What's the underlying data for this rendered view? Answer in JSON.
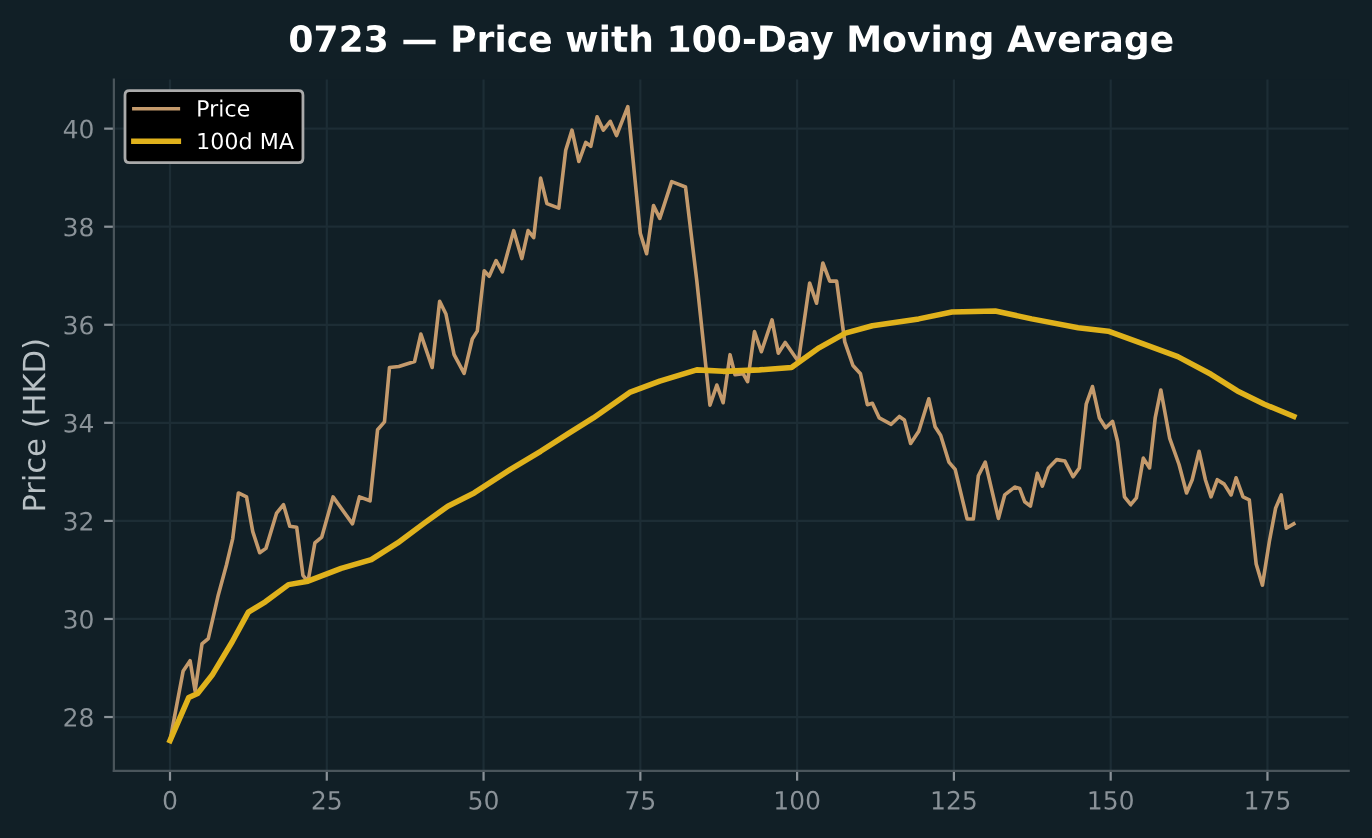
{
  "chart_data": {
    "type": "line",
    "title": "0723 — Price with 100-Day Moving Average",
    "ylabel": "Price (HKD)",
    "xlim": [
      -8.95,
      187.95
    ],
    "xticks": [
      0,
      25,
      50,
      75,
      100,
      125,
      150,
      175
    ],
    "ylim": [
      26.9,
      41.0
    ],
    "yticks": [
      28,
      30,
      32,
      34,
      36,
      38,
      40
    ],
    "grid": true,
    "legend": "top left",
    "series": [
      {
        "name": "Price",
        "color": "#c49a6c",
        "x": [
          0,
          2.1,
          3.2,
          4,
          5.1,
          6.1,
          7.7,
          9,
          10,
          10.9,
          12.2,
          13.2,
          14.3,
          15.3,
          17,
          18.1,
          19.1,
          20.2,
          21.2,
          22,
          23.1,
          24.2,
          26,
          29.1,
          30.2,
          31.9,
          33.1,
          34.2,
          35,
          36.5,
          39,
          40,
          41.8,
          43,
          44,
          45.3,
          46.9,
          48.2,
          49,
          50.1,
          50.9,
          52,
          53,
          54.8,
          56.1,
          57.1,
          58,
          59.1,
          60.1,
          62,
          63.1,
          64.1,
          65.2,
          66.3,
          67.1,
          68.1,
          69.1,
          70.2,
          71.2,
          73,
          75,
          76,
          77.1,
          78.1,
          80,
          82.2,
          84,
          86.1,
          87.2,
          88.2,
          89.3,
          90.1,
          91.4,
          92.1,
          93.2,
          94.3,
          96,
          97,
          98.1,
          100.2,
          102,
          103.1,
          104.1,
          105.2,
          106.3,
          107.6,
          108.9,
          110.1,
          111.2,
          112,
          113.1,
          115,
          116.3,
          117.1,
          118.1,
          119.4,
          121,
          122,
          122.9,
          124.2,
          125.2,
          127.1,
          128.1,
          128.9,
          130,
          132.1,
          133.1,
          134.7,
          135.5,
          136.3,
          137.2,
          138.3,
          139.1,
          140.1,
          141.4,
          142.7,
          144,
          145,
          146.1,
          147.1,
          148.2,
          149.2,
          150.3,
          151.1,
          152.2,
          153.2,
          154.1,
          155.2,
          156.2,
          157.1,
          158,
          159.4,
          160.9,
          162.1,
          163,
          164.1,
          165.1,
          166,
          167,
          168.1,
          169.2,
          170,
          171.1,
          172.1,
          173.2,
          174.2,
          175.3,
          176.3,
          177.2,
          178,
          179.2
        ],
        "values": [
          27.52,
          28.94,
          29.15,
          28.53,
          29.49,
          29.6,
          30.49,
          31.1,
          31.64,
          32.57,
          32.49,
          31.78,
          31.35,
          31.44,
          32.16,
          32.33,
          31.89,
          31.87,
          30.89,
          30.76,
          31.55,
          31.67,
          32.49,
          31.94,
          32.49,
          32.41,
          33.86,
          34.02,
          35.13,
          35.15,
          35.25,
          35.81,
          35.13,
          36.48,
          36.22,
          35.39,
          35.01,
          35.71,
          35.87,
          37.1,
          36.99,
          37.31,
          37.08,
          37.92,
          37.35,
          37.92,
          37.78,
          38.99,
          38.47,
          38.38,
          39.56,
          39.97,
          39.33,
          39.72,
          39.64,
          40.24,
          39.97,
          40.15,
          39.86,
          40.45,
          37.86,
          37.45,
          38.43,
          38.17,
          38.92,
          38.81,
          36.9,
          34.36,
          34.77,
          34.41,
          35.39,
          34.98,
          35.0,
          34.84,
          35.86,
          35.45,
          36.1,
          35.42,
          35.64,
          35.25,
          36.85,
          36.44,
          37.26,
          36.89,
          36.89,
          35.65,
          35.17,
          35.0,
          34.37,
          34.4,
          34.1,
          33.97,
          34.13,
          34.06,
          33.58,
          33.83,
          34.49,
          33.92,
          33.74,
          33.2,
          33.05,
          32.04,
          32.04,
          32.92,
          33.2,
          32.05,
          32.53,
          32.69,
          32.66,
          32.39,
          32.3,
          32.97,
          32.71,
          33.08,
          33.25,
          33.22,
          32.9,
          33.08,
          34.38,
          34.74,
          34.1,
          33.9,
          34.03,
          33.62,
          32.49,
          32.33,
          32.47,
          33.28,
          33.08,
          34.1,
          34.67,
          33.69,
          33.15,
          32.57,
          32.84,
          33.42,
          32.84,
          32.49,
          32.84,
          32.75,
          32.53,
          32.88,
          32.49,
          32.43,
          31.12,
          30.69,
          31.58,
          32.26,
          32.53,
          31.85,
          31.94
        ]
      },
      {
        "name": "100d MA",
        "color": "#e0b21c",
        "x": [
          0,
          3,
          4.4,
          6.7,
          9.9,
          12.5,
          15.2,
          18.9,
          22,
          27.3,
          32.1,
          36.3,
          40.6,
          44.3,
          48.5,
          54.3,
          59.1,
          63.5,
          67.5,
          73.3,
          78.1,
          84,
          88.2,
          94,
          99.1,
          103.5,
          107.7,
          112,
          119.4,
          124.7,
          131.6,
          137.4,
          144.8,
          149.6,
          155.4,
          160.7,
          166,
          170.2,
          174.5,
          179.2
        ],
        "values": [
          27.52,
          28.4,
          28.48,
          28.85,
          29.53,
          30.14,
          30.35,
          30.7,
          30.77,
          31.03,
          31.21,
          31.55,
          31.96,
          32.3,
          32.57,
          33.05,
          33.42,
          33.78,
          34.1,
          34.62,
          34.85,
          35.08,
          35.05,
          35.08,
          35.13,
          35.53,
          35.83,
          35.98,
          36.12,
          36.26,
          36.28,
          36.12,
          35.94,
          35.87,
          35.6,
          35.35,
          34.99,
          34.65,
          34.38,
          34.13
        ]
      }
    ]
  }
}
